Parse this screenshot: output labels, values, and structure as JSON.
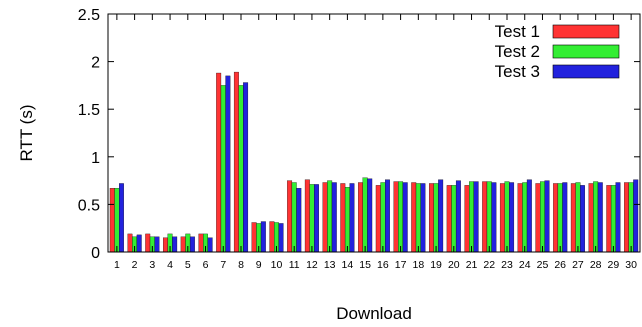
{
  "chart_data": {
    "type": "bar",
    "xlabel": "Download",
    "ylabel": "RTT (s)",
    "ylim": [
      0,
      2.5
    ],
    "yticks": [
      "0",
      "0.5",
      "1",
      "1.5",
      "2",
      "2.5"
    ],
    "categories": [
      "1",
      "2",
      "3",
      "4",
      "5",
      "6",
      "7",
      "8",
      "9",
      "10",
      "11",
      "12",
      "13",
      "14",
      "15",
      "16",
      "17",
      "18",
      "19",
      "20",
      "21",
      "22",
      "23",
      "24",
      "25",
      "26",
      "27",
      "28",
      "29",
      "30"
    ],
    "legend_position": "top-right",
    "grid": false,
    "series": [
      {
        "name": "Test 1",
        "color": "#ff3333",
        "values": [
          0.67,
          0.19,
          0.19,
          0.15,
          0.16,
          0.19,
          1.88,
          1.89,
          0.31,
          0.32,
          0.75,
          0.76,
          0.73,
          0.72,
          0.73,
          0.7,
          0.74,
          0.73,
          0.72,
          0.7,
          0.7,
          0.74,
          0.72,
          0.72,
          0.72,
          0.72,
          0.72,
          0.72,
          0.7,
          0.73
        ]
      },
      {
        "name": "Test 2",
        "color": "#33ee33",
        "values": [
          0.67,
          0.16,
          0.16,
          0.19,
          0.19,
          0.19,
          1.75,
          1.75,
          0.3,
          0.31,
          0.73,
          0.71,
          0.75,
          0.68,
          0.78,
          0.73,
          0.74,
          0.72,
          0.72,
          0.7,
          0.74,
          0.74,
          0.74,
          0.73,
          0.74,
          0.72,
          0.73,
          0.74,
          0.7,
          0.73
        ]
      },
      {
        "name": "Test 3",
        "color": "#2222dd",
        "values": [
          0.72,
          0.18,
          0.16,
          0.16,
          0.16,
          0.15,
          1.85,
          1.78,
          0.32,
          0.3,
          0.67,
          0.71,
          0.73,
          0.72,
          0.77,
          0.76,
          0.73,
          0.72,
          0.76,
          0.75,
          0.74,
          0.73,
          0.73,
          0.76,
          0.75,
          0.73,
          0.7,
          0.73,
          0.73,
          0.76
        ]
      }
    ]
  }
}
